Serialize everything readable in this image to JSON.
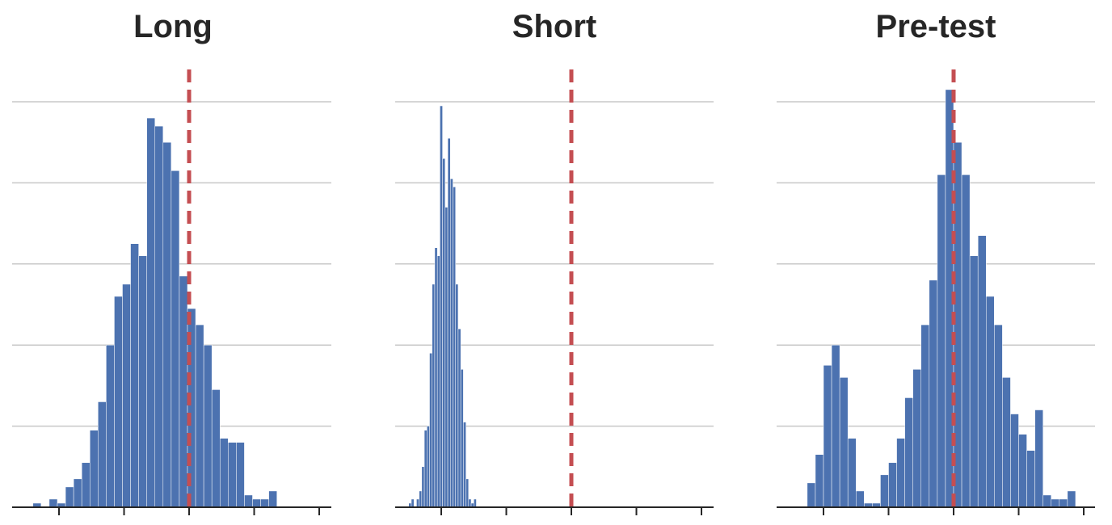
{
  "colors": {
    "bar": "#4c72b0",
    "reference_line": "#c44e52",
    "grid": "#c8c8c8",
    "axis": "#262626"
  },
  "chart_data": [
    {
      "type": "bar",
      "title": "Long",
      "xlabel": "",
      "ylabel": "",
      "grid": "horizontal",
      "x_ticks": [
        -2,
        -1,
        0,
        1,
        2
      ],
      "tick_labels_shown": false,
      "xlim": [
        -2.7,
        2.0
      ],
      "ylim": [
        0,
        100
      ],
      "y_gridlines": [
        20,
        40,
        60,
        80,
        100
      ],
      "reference_line_x": 0,
      "bin_edges_start": -2.4,
      "bin_width": 0.125,
      "values": [
        1,
        0,
        2,
        1,
        5,
        7,
        11,
        19,
        26,
        40,
        52,
        55,
        65,
        62,
        96,
        94,
        90,
        83,
        57,
        49,
        45,
        40,
        29,
        17,
        16,
        16,
        3,
        2,
        2,
        4
      ]
    },
    {
      "type": "bar",
      "title": "Short",
      "xlabel": "",
      "ylabel": "",
      "grid": "horizontal",
      "x_ticks": [
        -2,
        -1,
        0,
        1,
        2
      ],
      "tick_labels_shown": false,
      "xlim": [
        -2.7,
        2.2
      ],
      "ylim": [
        0,
        100
      ],
      "y_gridlines": [
        20,
        40,
        60,
        80,
        100
      ],
      "reference_line_x": 0,
      "bin_edges_start": -2.5,
      "bin_width": 0.04,
      "values": [
        1,
        2,
        0,
        2,
        4,
        10,
        19,
        20,
        38,
        55,
        64,
        62,
        99,
        86,
        74,
        91,
        81,
        79,
        55,
        44,
        34,
        21,
        7,
        2,
        1,
        2
      ]
    },
    {
      "type": "bar",
      "title": "Pre-test",
      "xlabel": "",
      "ylabel": "",
      "grid": "horizontal",
      "x_ticks": [
        -2,
        -1,
        0,
        1,
        2
      ],
      "tick_labels_shown": false,
      "xlim": [
        -2.7,
        2.2
      ],
      "ylim": [
        0,
        100
      ],
      "y_gridlines": [
        20,
        40,
        60,
        80,
        100
      ],
      "reference_line_x": 0,
      "bin_edges_start": -2.25,
      "bin_width": 0.125,
      "values": [
        6,
        13,
        35,
        40,
        32,
        17,
        4,
        1,
        1,
        8,
        11,
        17,
        27,
        34,
        45,
        56,
        82,
        103,
        90,
        82,
        62,
        67,
        52,
        45,
        32,
        23,
        18,
        14,
        24,
        3,
        2,
        2,
        4
      ]
    }
  ]
}
